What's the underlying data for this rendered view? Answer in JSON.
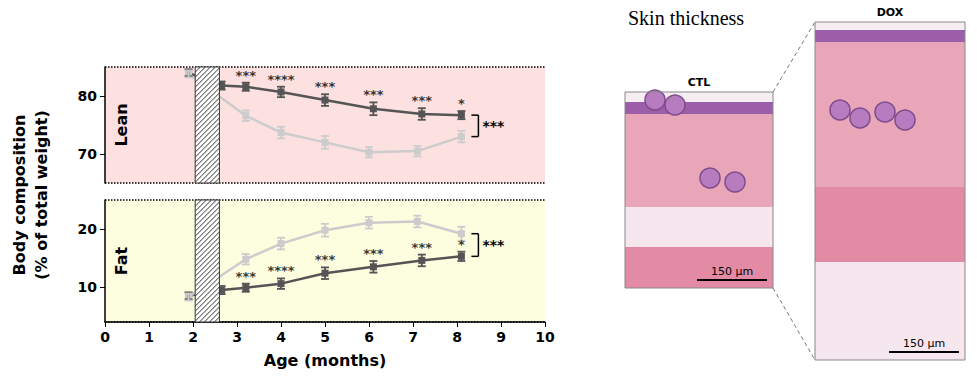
{
  "chart_data": {
    "type": "line",
    "xlabel": "Age (months)",
    "ylabel": [
      "Body composition",
      "(% of total weight)"
    ],
    "xlim": [
      0,
      10
    ],
    "xticks": [
      0,
      1,
      2,
      3,
      4,
      5,
      6,
      7,
      8,
      9,
      10
    ],
    "treatment_period": [
      2.05,
      2.6
    ],
    "marker": "square",
    "grid": false,
    "panels": [
      {
        "label": "Lean",
        "color": "#fde0e0",
        "ylim": [
          65,
          85
        ],
        "yticks": [
          70,
          80
        ],
        "overall_significance": "***",
        "series": [
          {
            "color": "#555555",
            "x": [
              1.9,
              2.65,
              3.2,
              4.0,
              5.0,
              6.1,
              7.2,
              8.1
            ],
            "values": [
              84.0,
              81.8,
              81.6,
              80.7,
              79.3,
              77.8,
              76.9,
              76.7
            ],
            "errors": [
              0.6,
              0.7,
              0.7,
              0.9,
              1.0,
              1.1,
              1.0,
              0.7
            ],
            "significance": [
              null,
              null,
              "***",
              "****",
              "***",
              "***",
              "***",
              "*"
            ]
          },
          {
            "color": "#cccccc",
            "x": [
              1.9,
              3.2,
              4.0,
              5.0,
              6.0,
              7.1,
              8.1
            ],
            "values": [
              83.8,
              76.6,
              73.7,
              72.0,
              70.3,
              70.5,
              73.0
            ],
            "errors": [
              0.6,
              0.9,
              1.0,
              1.1,
              0.9,
              0.9,
              1.0
            ]
          }
        ]
      },
      {
        "label": "Fat",
        "color": "#fdfde0",
        "ylim": [
          4,
          25
        ],
        "yticks": [
          10,
          20
        ],
        "overall_significance": "***",
        "series": [
          {
            "color": "#555555",
            "x": [
              1.9,
              2.65,
              3.2,
              4.0,
              5.0,
              6.1,
              7.2,
              8.1
            ],
            "values": [
              8.5,
              9.5,
              9.9,
              10.6,
              12.4,
              13.5,
              14.6,
              15.3
            ],
            "errors": [
              0.6,
              0.7,
              0.7,
              0.9,
              1.0,
              1.0,
              1.0,
              0.8
            ],
            "significance": [
              null,
              null,
              "***",
              "****",
              "***",
              "***",
              "***",
              "*"
            ]
          },
          {
            "color": "#cccccc",
            "x": [
              1.9,
              3.2,
              4.0,
              5.0,
              6.0,
              7.1,
              8.1
            ],
            "values": [
              8.3,
              14.8,
              17.5,
              19.8,
              21.1,
              21.3,
              19.2
            ],
            "errors": [
              0.6,
              0.9,
              1.0,
              1.1,
              1.0,
              1.0,
              1.2
            ]
          }
        ]
      }
    ]
  },
  "images": {
    "title": "Skin thickness",
    "panels": [
      {
        "label": "CTL",
        "scale_bar": "150 µm"
      },
      {
        "label": "DOX",
        "scale_bar": "150 µm"
      }
    ]
  }
}
